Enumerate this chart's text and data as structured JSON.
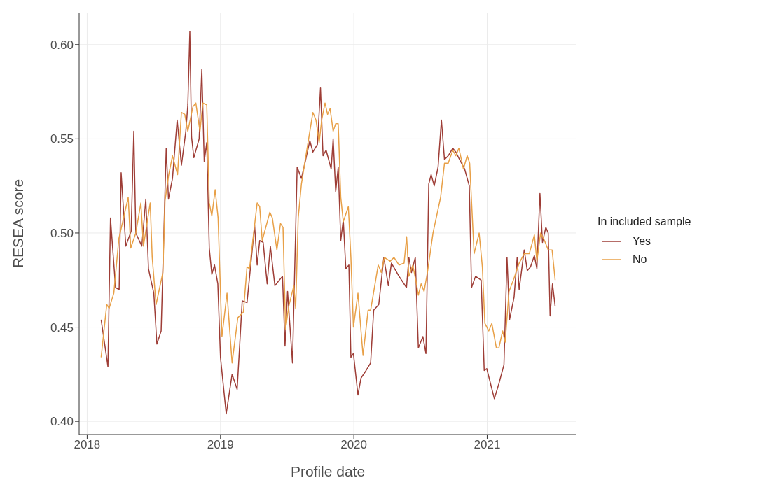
{
  "chart_data": {
    "type": "line",
    "xlabel": "Profile date",
    "ylabel": "RESEA score",
    "legend_title": "In included sample",
    "legend": "right",
    "grid": true,
    "line_style": "solid",
    "xlim": [
      2017.94,
      2021.67
    ],
    "xticks": [
      2018,
      2019,
      2020,
      2021
    ],
    "ylim": [
      0.393,
      0.617
    ],
    "yticks": [
      {
        "value": 0.4,
        "label": "0.40"
      },
      {
        "value": 0.45,
        "label": "0.45"
      },
      {
        "value": 0.5,
        "label": "0.50"
      },
      {
        "value": 0.55,
        "label": "0.55"
      },
      {
        "value": 0.6,
        "label": "0.60"
      }
    ],
    "series": [
      {
        "name": "Yes",
        "color": "#9e3d36",
        "x": [
          2018.105,
          2018.156,
          2018.175,
          2018.213,
          2018.24,
          2018.255,
          2018.29,
          2018.33,
          2018.35,
          2018.365,
          2018.41,
          2018.44,
          2018.46,
          2018.5,
          2018.523,
          2018.555,
          2018.593,
          2018.61,
          2018.64,
          2018.675,
          2018.707,
          2018.74,
          2018.755,
          2018.77,
          2018.783,
          2018.8,
          2018.84,
          2018.86,
          2018.878,
          2018.897,
          2018.916,
          2018.935,
          2018.955,
          2018.98,
          2019.0,
          2019.043,
          2019.087,
          2019.125,
          2019.163,
          2019.199,
          2019.256,
          2019.275,
          2019.294,
          2019.32,
          2019.35,
          2019.374,
          2019.408,
          2019.465,
          2019.484,
          2019.503,
          2019.54,
          2019.575,
          2019.607,
          2019.636,
          2019.67,
          2019.693,
          2019.727,
          2019.75,
          2019.769,
          2019.792,
          2019.83,
          2019.845,
          2019.864,
          2019.883,
          2019.902,
          2019.921,
          2019.94,
          2019.963,
          2019.978,
          2019.997,
          2020.031,
          2020.054,
          2020.092,
          2020.126,
          2020.149,
          2020.187,
          2020.225,
          2020.259,
          2020.282,
          2020.339,
          2020.395,
          2020.413,
          2020.432,
          2020.461,
          2020.484,
          2020.518,
          2020.541,
          2020.562,
          2020.58,
          2020.603,
          2020.632,
          2020.657,
          2020.68,
          2020.708,
          2020.742,
          2020.765,
          2020.793,
          2020.831,
          2020.866,
          2020.883,
          2020.913,
          2020.955,
          2020.978,
          2020.997,
          2021.054,
          2021.088,
          2021.126,
          2021.149,
          2021.168,
          2021.202,
          2021.225,
          2021.24,
          2021.278,
          2021.301,
          2021.325,
          2021.354,
          2021.373,
          2021.396,
          2021.415,
          2021.44,
          2021.458,
          2021.472,
          2021.49,
          2021.51
        ],
        "values": [
          0.454,
          0.429,
          0.508,
          0.471,
          0.47,
          0.532,
          0.493,
          0.501,
          0.554,
          0.5,
          0.493,
          0.518,
          0.481,
          0.468,
          0.441,
          0.448,
          0.545,
          0.518,
          0.529,
          0.56,
          0.536,
          0.554,
          0.568,
          0.607,
          0.551,
          0.54,
          0.55,
          0.587,
          0.538,
          0.548,
          0.492,
          0.478,
          0.483,
          0.473,
          0.434,
          0.404,
          0.425,
          0.417,
          0.464,
          0.463,
          0.504,
          0.483,
          0.496,
          0.495,
          0.473,
          0.493,
          0.472,
          0.477,
          0.44,
          0.469,
          0.431,
          0.535,
          0.529,
          0.538,
          0.549,
          0.543,
          0.547,
          0.577,
          0.541,
          0.544,
          0.534,
          0.55,
          0.522,
          0.535,
          0.496,
          0.507,
          0.481,
          0.483,
          0.434,
          0.436,
          0.414,
          0.423,
          0.427,
          0.431,
          0.459,
          0.462,
          0.487,
          0.472,
          0.484,
          0.477,
          0.471,
          0.487,
          0.479,
          0.487,
          0.439,
          0.445,
          0.436,
          0.526,
          0.531,
          0.525,
          0.535,
          0.56,
          0.539,
          0.541,
          0.545,
          0.543,
          0.539,
          0.534,
          0.525,
          0.471,
          0.477,
          0.475,
          0.427,
          0.428,
          0.412,
          0.42,
          0.43,
          0.487,
          0.454,
          0.466,
          0.487,
          0.47,
          0.491,
          0.48,
          0.482,
          0.488,
          0.481,
          0.521,
          0.495,
          0.503,
          0.5,
          0.456,
          0.473,
          0.461
        ]
      },
      {
        "name": "No",
        "color": "#e8a047",
        "x": [
          2018.105,
          2018.147,
          2018.165,
          2018.2,
          2018.238,
          2018.308,
          2018.327,
          2018.365,
          2018.403,
          2018.422,
          2018.473,
          2018.488,
          2018.517,
          2018.568,
          2018.584,
          2018.612,
          2018.64,
          2018.678,
          2018.707,
          2018.732,
          2018.755,
          2018.793,
          2018.815,
          2018.846,
          2018.868,
          2018.897,
          2018.916,
          2018.935,
          2018.96,
          2018.982,
          2019.011,
          2019.049,
          2019.087,
          2019.13,
          2019.172,
          2019.199,
          2019.218,
          2019.275,
          2019.294,
          2019.313,
          2019.37,
          2019.389,
          2019.423,
          2019.45,
          2019.469,
          2019.488,
          2019.512,
          2019.55,
          2019.564,
          2019.583,
          2019.607,
          2019.636,
          2019.693,
          2019.716,
          2019.74,
          2019.759,
          2019.784,
          2019.803,
          2019.822,
          2019.845,
          2019.864,
          2019.883,
          2019.902,
          2019.921,
          2019.959,
          2019.978,
          2019.997,
          2020.031,
          2020.069,
          2020.107,
          2020.126,
          2020.183,
          2020.206,
          2020.229,
          2020.272,
          2020.301,
          2020.339,
          2020.377,
          2020.396,
          2020.413,
          2020.442,
          2020.47,
          2020.484,
          2020.505,
          2020.527,
          2020.552,
          2020.594,
          2020.651,
          2020.68,
          2020.708,
          2020.742,
          2020.765,
          2020.788,
          2020.822,
          2020.85,
          2020.869,
          2020.902,
          2020.94,
          2020.964,
          2020.983,
          2021.012,
          2021.035,
          2021.069,
          2021.088,
          2021.116,
          2021.135,
          2021.164,
          2021.202,
          2021.24,
          2021.278,
          2021.316,
          2021.354,
          2021.373,
          2021.401,
          2021.43,
          2021.458,
          2021.487,
          2021.51
        ],
        "values": [
          0.434,
          0.462,
          0.46,
          0.468,
          0.497,
          0.519,
          0.492,
          0.5,
          0.516,
          0.493,
          0.516,
          0.487,
          0.462,
          0.479,
          0.517,
          0.531,
          0.541,
          0.531,
          0.564,
          0.563,
          0.554,
          0.567,
          0.569,
          0.554,
          0.569,
          0.568,
          0.516,
          0.509,
          0.523,
          0.508,
          0.445,
          0.468,
          0.431,
          0.455,
          0.458,
          0.482,
          0.481,
          0.516,
          0.514,
          0.496,
          0.511,
          0.508,
          0.491,
          0.505,
          0.503,
          0.449,
          0.461,
          0.472,
          0.46,
          0.508,
          0.526,
          0.539,
          0.564,
          0.56,
          0.548,
          0.56,
          0.569,
          0.563,
          0.566,
          0.554,
          0.558,
          0.558,
          0.519,
          0.506,
          0.514,
          0.487,
          0.45,
          0.468,
          0.435,
          0.459,
          0.459,
          0.483,
          0.479,
          0.487,
          0.485,
          0.487,
          0.483,
          0.484,
          0.498,
          0.477,
          0.483,
          0.473,
          0.467,
          0.473,
          0.469,
          0.479,
          0.5,
          0.519,
          0.537,
          0.537,
          0.544,
          0.541,
          0.545,
          0.534,
          0.541,
          0.537,
          0.489,
          0.5,
          0.482,
          0.452,
          0.448,
          0.452,
          0.439,
          0.439,
          0.448,
          0.442,
          0.469,
          0.476,
          0.484,
          0.489,
          0.489,
          0.499,
          0.485,
          0.5,
          0.496,
          0.491,
          0.491,
          0.475
        ]
      }
    ]
  }
}
